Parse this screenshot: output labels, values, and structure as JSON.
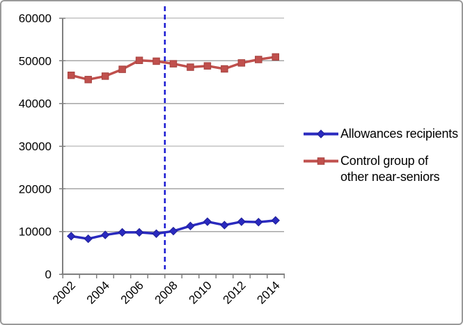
{
  "chart_data": {
    "type": "line",
    "x": [
      2002,
      2003,
      2004,
      2005,
      2006,
      2007,
      2008,
      2009,
      2010,
      2011,
      2012,
      2013,
      2014
    ],
    "series": [
      {
        "name": "Allowances recipients",
        "marker": "diamond",
        "color": "#2a2abf",
        "marker_border": "#1e1e96",
        "values": [
          8900,
          8300,
          9200,
          9800,
          9800,
          9500,
          10100,
          11300,
          12300,
          11500,
          12300,
          12200,
          12600
        ]
      },
      {
        "name": "Control group of other near-seniors",
        "marker": "square",
        "color": "#c0504d",
        "marker_border": "#a5423f",
        "values": [
          46600,
          45600,
          46400,
          48000,
          50100,
          49900,
          49300,
          48500,
          48800,
          48100,
          49500,
          50300,
          50900
        ]
      }
    ],
    "title": "",
    "xlabel": "",
    "ylabel": "",
    "ylim": [
      0,
      60000
    ],
    "yticks": [
      0,
      10000,
      20000,
      30000,
      40000,
      50000,
      60000
    ],
    "ytick_labels": [
      "0",
      "10000",
      "20000",
      "30000",
      "40000",
      "50000",
      "60000"
    ],
    "xtick_labels": [
      "2002",
      "2004",
      "2006",
      "2008",
      "2010",
      "2012",
      "2014"
    ],
    "xtick_label_years": [
      2002,
      2004,
      2006,
      2008,
      2010,
      2012,
      2014
    ],
    "grid": true,
    "legend_position": "right",
    "vline": {
      "year": 2008,
      "position": "left-of-point",
      "style": "dashed",
      "color": "#1a1ad2"
    }
  },
  "legend": {
    "items": [
      {
        "label": "Allowances recipients"
      },
      {
        "label": "Control group of other near-seniors"
      }
    ]
  },
  "styles": {
    "grid_color": "#a6a6a6",
    "axis_color": "#7f7f7f",
    "text_color": "#000000",
    "background": "#ffffff",
    "border_color": "#9a9a9a"
  }
}
